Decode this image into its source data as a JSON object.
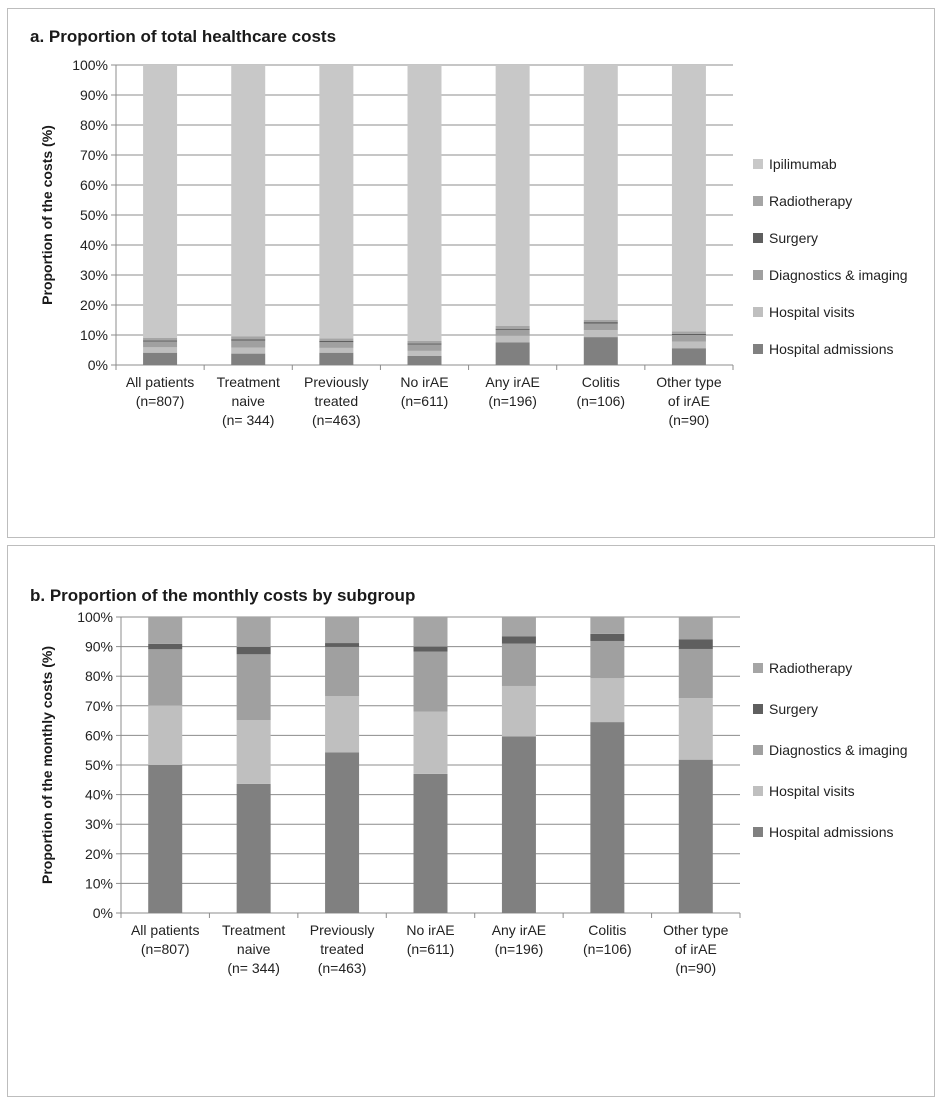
{
  "chart_data": [
    {
      "type": "bar",
      "stacked": true,
      "title": "a. Proportion of total healthcare costs",
      "ylabel": "Proportion of the costs (%)",
      "xlabel": "",
      "ylim": [
        0,
        100
      ],
      "yticks": [
        "0%",
        "10%",
        "20%",
        "30%",
        "40%",
        "50%",
        "60%",
        "70%",
        "80%",
        "90%",
        "100%"
      ],
      "grid": true,
      "legend_position": "right",
      "categories": [
        [
          "All patients",
          "(n=807)"
        ],
        [
          "Treatment",
          "naive",
          "(n= 344)"
        ],
        [
          "Previously",
          "treated",
          "(n=463)"
        ],
        [
          "No irAE",
          "(n=611)"
        ],
        [
          "Any irAE",
          "(n=196)"
        ],
        [
          "Colitis",
          "(n=106)"
        ],
        [
          "Other type",
          "of irAE",
          "(n=90)"
        ]
      ],
      "series": [
        {
          "name": "Hospital admissions",
          "color": "#808080",
          "values": [
            4.1,
            3.8,
            4.1,
            3.0,
            7.5,
            9.3,
            5.6
          ]
        },
        {
          "name": "Hospital visits",
          "color": "#bfbfbf",
          "values": [
            1.8,
            2.0,
            1.6,
            1.7,
            2.2,
            2.3,
            2.2
          ]
        },
        {
          "name": "Diagnostics & imaging",
          "color": "#a0a0a0",
          "values": [
            1.9,
            2.3,
            1.9,
            2.1,
            2.0,
            2.2,
            2.2
          ]
        },
        {
          "name": "Surgery",
          "color": "#5f5f5f",
          "values": [
            0.4,
            0.5,
            0.4,
            0.4,
            0.4,
            0.5,
            0.4
          ]
        },
        {
          "name": "Radiotherapy",
          "color": "#a5a5a5",
          "values": [
            0.9,
            1.0,
            0.9,
            0.9,
            0.9,
            0.7,
            0.8
          ]
        },
        {
          "name": "Ipilimumab",
          "color": "#c8c8c8",
          "values": [
            90.9,
            90.4,
            91.1,
            91.9,
            87.0,
            85.0,
            88.8
          ]
        }
      ]
    },
    {
      "type": "bar",
      "stacked": true,
      "title": "b. Proportion of the monthly costs by subgroup",
      "ylabel": "Proportion of the monthly costs (%)",
      "xlabel": "",
      "ylim": [
        0,
        100
      ],
      "yticks": [
        "0%",
        "10%",
        "20%",
        "30%",
        "40%",
        "50%",
        "60%",
        "70%",
        "80%",
        "90%",
        "100%"
      ],
      "grid": true,
      "legend_position": "right",
      "categories": [
        [
          "All patients",
          "(n=807)"
        ],
        [
          "Treatment",
          "naive",
          "(n= 344)"
        ],
        [
          "Previously",
          "treated",
          "(n=463)"
        ],
        [
          "No irAE",
          "(n=611)"
        ],
        [
          "Any irAE",
          "(n=196)"
        ],
        [
          "Colitis",
          "(n=106)"
        ],
        [
          "Other type",
          "of irAE",
          "(n=90)"
        ]
      ],
      "series": [
        {
          "name": "Hospital admissions",
          "color": "#808080",
          "values": [
            50.0,
            43.6,
            54.3,
            47.0,
            59.7,
            64.5,
            51.8
          ]
        },
        {
          "name": "Hospital visits",
          "color": "#bfbfbf",
          "values": [
            20.1,
            21.6,
            19.0,
            21.0,
            17.0,
            14.8,
            20.8
          ]
        },
        {
          "name": "Diagnostics & imaging",
          "color": "#a0a0a0",
          "values": [
            19.0,
            22.2,
            16.6,
            20.3,
            14.3,
            12.6,
            16.6
          ]
        },
        {
          "name": "Surgery",
          "color": "#5f5f5f",
          "values": [
            1.8,
            2.5,
            1.3,
            1.7,
            2.5,
            2.4,
            3.2
          ]
        },
        {
          "name": "Radiotherapy",
          "color": "#a5a5a5",
          "values": [
            9.1,
            10.1,
            8.8,
            10.0,
            6.5,
            5.7,
            7.6
          ]
        }
      ]
    }
  ]
}
